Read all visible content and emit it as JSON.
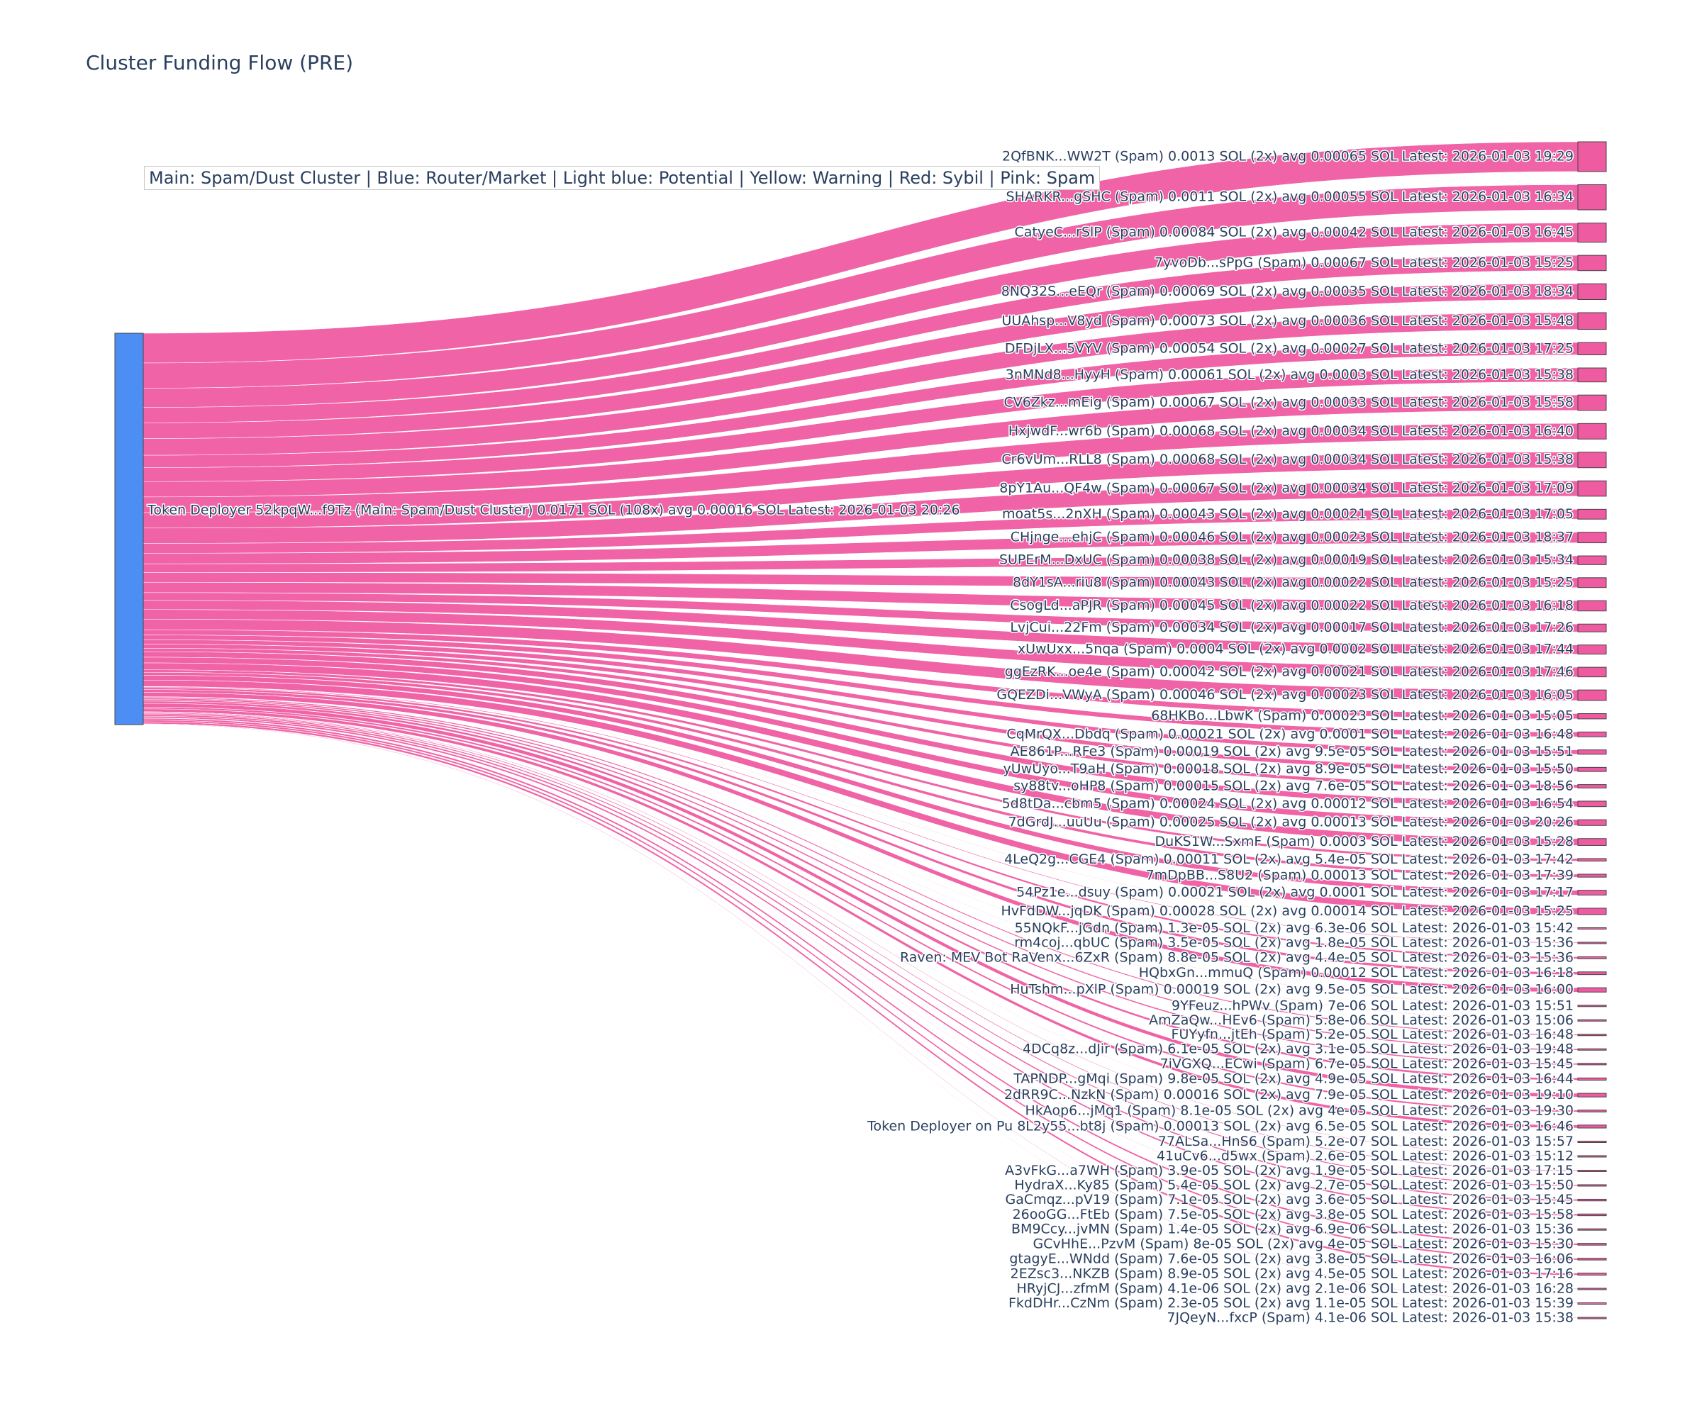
{
  "chart_data": {
    "type": "sankey",
    "title": "Cluster Funding Flow (PRE)",
    "legend_text": "Main: Spam/Dust Cluster  |  Blue: Router/Market | Light blue: Potential | Yellow: Warning | Red: Sybil | Pink: Spam",
    "colors": {
      "source": "#4d8ef5",
      "target": "#ef5ba1",
      "link": "#ef5ba1",
      "label": "#2a3f5f"
    },
    "source": {
      "label": "Token Deployer 52kpqW...f9Tz (Main: Spam/Dust Cluster) 0.0171 SOL (108x) avg 0.00016 SOL Latest: 2026-01-03 20:26",
      "value": 0.0171
    },
    "targets": [
      {
        "label": "2QfBNK...WW2T (Spam) 0.0013 SOL (2x) avg 0.00065 SOL Latest: 2026-01-03 19:29",
        "value": 0.0013
      },
      {
        "label": "SHARKR...gSHC (Spam) 0.0011 SOL (2x) avg 0.00055 SOL Latest: 2026-01-03 16:34",
        "value": 0.0011
      },
      {
        "label": "CatyeC...rSlP (Spam) 0.00084 SOL (2x) avg 0.00042 SOL Latest: 2026-01-03 16:45",
        "value": 0.00084
      },
      {
        "label": "7yvoDb...sPpG (Spam) 0.00067 SOL Latest: 2026-01-03 15:25",
        "value": 0.00067
      },
      {
        "label": "8NQ32S...eEQr (Spam) 0.00069 SOL (2x) avg 0.00035 SOL Latest: 2026-01-03 18:34",
        "value": 0.00069
      },
      {
        "label": "UUAhsp...V8yd (Spam) 0.00073 SOL (2x) avg 0.00036 SOL Latest: 2026-01-03 15:48",
        "value": 0.00073
      },
      {
        "label": "DFDjLX...5VYV (Spam) 0.00054 SOL (2x) avg 0.00027 SOL Latest: 2026-01-03 17:25",
        "value": 0.00054
      },
      {
        "label": "3nMNd8...HyyH (Spam) 0.00061 SOL (2x) avg 0.0003 SOL Latest: 2026-01-03 15:38",
        "value": 0.00061
      },
      {
        "label": "CV6Zkz...mEig (Spam) 0.00067 SOL (2x) avg 0.00033 SOL Latest: 2026-01-03 15:58",
        "value": 0.00067
      },
      {
        "label": "HxjwdF...wr6b (Spam) 0.00068 SOL (2x) avg 0.00034 SOL Latest: 2026-01-03 16:40",
        "value": 0.00068
      },
      {
        "label": "Cr6vUm...RLL8 (Spam) 0.00068 SOL (2x) avg 0.00034 SOL Latest: 2026-01-03 15:38",
        "value": 0.00068
      },
      {
        "label": "8pY1Au...QF4w (Spam) 0.00067 SOL (2x) avg 0.00034 SOL Latest: 2026-01-03 17:09",
        "value": 0.00067
      },
      {
        "label": "moat5s...2nXH (Spam) 0.00043 SOL (2x) avg 0.00021 SOL Latest: 2026-01-03 17:05",
        "value": 0.00043
      },
      {
        "label": "CHjnge...ehjC (Spam) 0.00046 SOL (2x) avg 0.00023 SOL Latest: 2026-01-03 18:37",
        "value": 0.00046
      },
      {
        "label": "SUPErM...DxUC (Spam) 0.00038 SOL (2x) avg 0.00019 SOL Latest: 2026-01-03 15:34",
        "value": 0.00038
      },
      {
        "label": "8dY1sA...riu8 (Spam) 0.00043 SOL (2x) avg 0.00022 SOL Latest: 2026-01-03 15:25",
        "value": 0.00043
      },
      {
        "label": "CsogLd...aPJR (Spam) 0.00045 SOL (2x) avg 0.00022 SOL Latest: 2026-01-03 16:18",
        "value": 0.00045
      },
      {
        "label": "LvjCui...22Fm (Spam) 0.00034 SOL (2x) avg 0.00017 SOL Latest: 2026-01-03 17:26",
        "value": 0.00034
      },
      {
        "label": "xUwUxx...5nqa (Spam) 0.0004 SOL (2x) avg 0.0002 SOL Latest: 2026-01-03 17:44",
        "value": 0.0004
      },
      {
        "label": "ggEzRK...oe4e (Spam) 0.00042 SOL (2x) avg 0.00021 SOL Latest: 2026-01-03 17:46",
        "value": 0.00042
      },
      {
        "label": "GQEZDi...VWyA (Spam) 0.00046 SOL (2x) avg 0.00023 SOL Latest: 2026-01-03 16:05",
        "value": 0.00046
      },
      {
        "label": "68HKBo...LbwK (Spam) 0.00023 SOL Latest: 2026-01-03 15:05",
        "value": 0.00023
      },
      {
        "label": "CqMrQX...Dbdq (Spam) 0.00021 SOL (2x) avg 0.0001 SOL Latest: 2026-01-03 16:48",
        "value": 0.00021
      },
      {
        "label": "AE861P...RFe3 (Spam) 0.00019 SOL (2x) avg 9.5e-05 SOL Latest: 2026-01-03 15:51",
        "value": 0.00019
      },
      {
        "label": "yUwUyo...T9aH (Spam) 0.00018 SOL (2x) avg 8.9e-05 SOL Latest: 2026-01-03 15:50",
        "value": 0.00018
      },
      {
        "label": "sy88tv...oHP8 (Spam) 0.00015 SOL (2x) avg 7.6e-05 SOL Latest: 2026-01-03 18:56",
        "value": 0.00015
      },
      {
        "label": "5d8tDa...cbm5 (Spam) 0.00024 SOL (2x) avg 0.00012 SOL Latest: 2026-01-03 16:54",
        "value": 0.00024
      },
      {
        "label": "7dGrdJ...uuUu (Spam) 0.00025 SOL (2x) avg 0.00013 SOL Latest: 2026-01-03 20:26",
        "value": 0.00025
      },
      {
        "label": "DuKS1W...SxmF (Spam) 0.0003 SOL Latest: 2026-01-03 15:28",
        "value": 0.0003
      },
      {
        "label": "4LeQ2g...CGE4 (Spam) 0.00011 SOL (2x) avg 5.4e-05 SOL Latest: 2026-01-03 17:42",
        "value": 0.00011
      },
      {
        "label": "7mDpBB...S8U2 (Spam) 0.00013 SOL Latest: 2026-01-03 17:39",
        "value": 0.00013
      },
      {
        "label": "54Pz1e...dsuy (Spam) 0.00021 SOL (2x) avg 0.0001 SOL Latest: 2026-01-03 17:17",
        "value": 0.00021
      },
      {
        "label": "HvFdDW...jqDK (Spam) 0.00028 SOL (2x) avg 0.00014 SOL Latest: 2026-01-03 15:25",
        "value": 0.00028
      },
      {
        "label": "55NQkF...jGdn (Spam) 1.3e-05 SOL (2x) avg 6.3e-06 SOL Latest: 2026-01-03 15:42",
        "value": 1.3e-05
      },
      {
        "label": "rm4coj...qbUC (Spam) 3.5e-05 SOL (2x) avg 1.8e-05 SOL Latest: 2026-01-03 15:36",
        "value": 3.5e-05
      },
      {
        "label": "Raven: MEV Bot RaVenx...6ZxR (Spam) 8.8e-05 SOL (2x) avg 4.4e-05 SOL Latest: 2026-01-03 15:36",
        "value": 8.8e-05
      },
      {
        "label": "HQbxGn...mmuQ (Spam) 0.00012 SOL Latest: 2026-01-03 16:18",
        "value": 0.00012
      },
      {
        "label": "HuTshm...pXlP (Spam) 0.00019 SOL (2x) avg 9.5e-05 SOL Latest: 2026-01-03 16:00",
        "value": 0.00019
      },
      {
        "label": "9YFeuz...hPWv (Spam) 7e-06 SOL Latest: 2026-01-03 15:51",
        "value": 7e-06
      },
      {
        "label": "AmZaQw...HEv6 (Spam) 5.8e-06 SOL Latest: 2026-01-03 15:06",
        "value": 5.8e-06
      },
      {
        "label": "FUYyfn...jtEh (Spam) 5.2e-05 SOL Latest: 2026-01-03 16:48",
        "value": 5.2e-05
      },
      {
        "label": "4DCq8z...dJir (Spam) 6.1e-05 SOL (2x) avg 3.1e-05 SOL Latest: 2026-01-03 19:48",
        "value": 6.1e-05
      },
      {
        "label": "7iVGXQ...ECwi (Spam) 6.7e-05 SOL Latest: 2026-01-03 15:45",
        "value": 6.7e-05
      },
      {
        "label": "TAPNDP...gMqi (Spam) 9.8e-05 SOL (2x) avg 4.9e-05 SOL Latest: 2026-01-03 16:44",
        "value": 9.8e-05
      },
      {
        "label": "2dRR9C...NzkN (Spam) 0.00016 SOL (2x) avg 7.9e-05 SOL Latest: 2026-01-03 19:10",
        "value": 0.00016
      },
      {
        "label": "HkAop6...jMq1 (Spam) 8.1e-05 SOL (2x) avg 4e-05 SOL Latest: 2026-01-03 19:30",
        "value": 8.1e-05
      },
      {
        "label": "Token Deployer on Pu 8L2y55...bt8j (Spam) 0.00013 SOL (2x) avg 6.5e-05 SOL Latest: 2026-01-03 16:46",
        "value": 0.00013
      },
      {
        "label": "77ALSa...HnS6 (Spam) 5.2e-07 SOL Latest: 2026-01-03 15:57",
        "value": 5.2e-07
      },
      {
        "label": "41uCv6...d5wx (Spam) 2.6e-05 SOL Latest: 2026-01-03 15:12",
        "value": 2.6e-05
      },
      {
        "label": "A3vFkG...a7WH (Spam) 3.9e-05 SOL (2x) avg 1.9e-05 SOL Latest: 2026-01-03 17:15",
        "value": 3.9e-05
      },
      {
        "label": "HydraX...Ky85 (Spam) 5.4e-05 SOL (2x) avg 2.7e-05 SOL Latest: 2026-01-03 15:50",
        "value": 5.4e-05
      },
      {
        "label": "GaCmqz...pV19 (Spam) 7.1e-05 SOL (2x) avg 3.6e-05 SOL Latest: 2026-01-03 15:45",
        "value": 7.1e-05
      },
      {
        "label": "26ooGG...FtEb (Spam) 7.5e-05 SOL (2x) avg 3.8e-05 SOL Latest: 2026-01-03 15:58",
        "value": 7.5e-05
      },
      {
        "label": "BM9Ccy...jvMN (Spam) 1.4e-05 SOL (2x) avg 6.9e-06 SOL Latest: 2026-01-03 15:36",
        "value": 1.4e-05
      },
      {
        "label": "GCvHhE...PzvM (Spam) 8e-05 SOL (2x) avg 4e-05 SOL Latest: 2026-01-03 15:30",
        "value": 8e-05
      },
      {
        "label": "gtagyE...WNdd (Spam) 7.6e-05 SOL (2x) avg 3.8e-05 SOL Latest: 2026-01-03 16:06",
        "value": 7.6e-05
      },
      {
        "label": "2EZsc3...NKZB (Spam) 8.9e-05 SOL (2x) avg 4.5e-05 SOL Latest: 2026-01-03 17:16",
        "value": 8.9e-05
      },
      {
        "label": "HRyjCJ...zfmM (Spam) 4.1e-06 SOL (2x) avg 2.1e-06 SOL Latest: 2026-01-03 16:28",
        "value": 4.1e-06
      },
      {
        "label": "FkdDHr...CzNm (Spam) 2.3e-05 SOL (2x) avg 1.1e-05 SOL Latest: 2026-01-03 15:39",
        "value": 2.3e-05
      },
      {
        "label": "7JQeyN...fxcP (Spam) 4.1e-06 SOL Latest: 2026-01-03 15:38",
        "value": 4.1e-06
      }
    ]
  }
}
